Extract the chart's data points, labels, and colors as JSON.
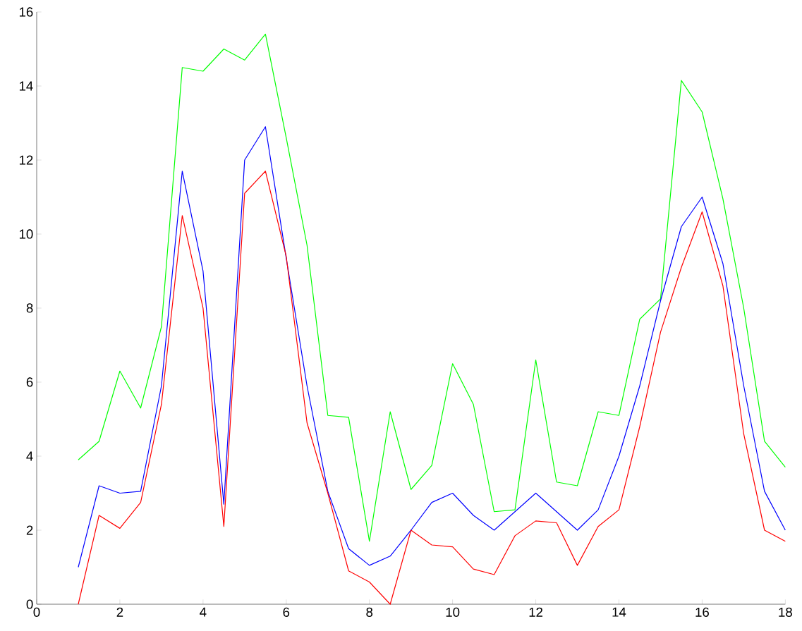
{
  "chart_data": {
    "type": "line",
    "x": [
      1,
      1.5,
      2,
      2.5,
      3,
      3.5,
      4,
      4.5,
      5,
      5.5,
      6,
      6.5,
      7,
      7.5,
      8,
      8.5,
      9,
      9.5,
      10,
      10.5,
      11,
      11.5,
      12,
      12.5,
      13,
      13.5,
      14,
      14.5,
      15,
      15.5,
      16,
      16.5,
      17,
      17.5,
      18
    ],
    "series": [
      {
        "color": "#00ff00",
        "values": [
          3.9,
          4.4,
          6.3,
          5.3,
          7.5,
          14.5,
          14.4,
          15.0,
          14.7,
          15.4,
          12.6,
          9.7,
          5.1,
          5.05,
          1.7,
          5.2,
          3.1,
          3.75,
          6.5,
          5.4,
          2.5,
          2.55,
          6.6,
          3.3,
          3.2,
          5.2,
          5.1,
          7.7,
          8.25,
          14.15,
          13.3,
          10.95,
          8.0,
          4.4,
          3.7
        ]
      },
      {
        "color": "#0000ff",
        "values": [
          1.0,
          3.2,
          3.0,
          3.05,
          5.9,
          11.7,
          9.0,
          2.7,
          12.0,
          12.9,
          9.35,
          5.9,
          3.05,
          1.5,
          1.05,
          1.3,
          2.0,
          2.75,
          3.0,
          2.4,
          2.0,
          2.5,
          3.0,
          2.5,
          2.0,
          2.55,
          4.0,
          5.9,
          8.2,
          10.2,
          11.0,
          9.2,
          5.9,
          3.05,
          2.0
        ]
      },
      {
        "color": "#ff0000",
        "values": [
          0.0,
          2.4,
          2.05,
          2.75,
          5.4,
          10.5,
          8.0,
          2.1,
          11.1,
          11.7,
          9.4,
          4.9,
          3.0,
          0.9,
          0.6,
          0.0,
          2.0,
          1.6,
          1.55,
          0.95,
          0.8,
          1.85,
          2.25,
          2.2,
          1.05,
          2.1,
          2.55,
          4.8,
          7.35,
          9.1,
          10.6,
          8.6,
          4.6,
          2.0,
          1.7
        ]
      }
    ],
    "xlim": [
      0,
      18
    ],
    "ylim": [
      0,
      16
    ],
    "xticks": [
      0,
      2,
      4,
      6,
      8,
      10,
      12,
      14,
      16,
      18
    ],
    "yticks": [
      0,
      2,
      4,
      6,
      8,
      10,
      12,
      14,
      16
    ]
  }
}
